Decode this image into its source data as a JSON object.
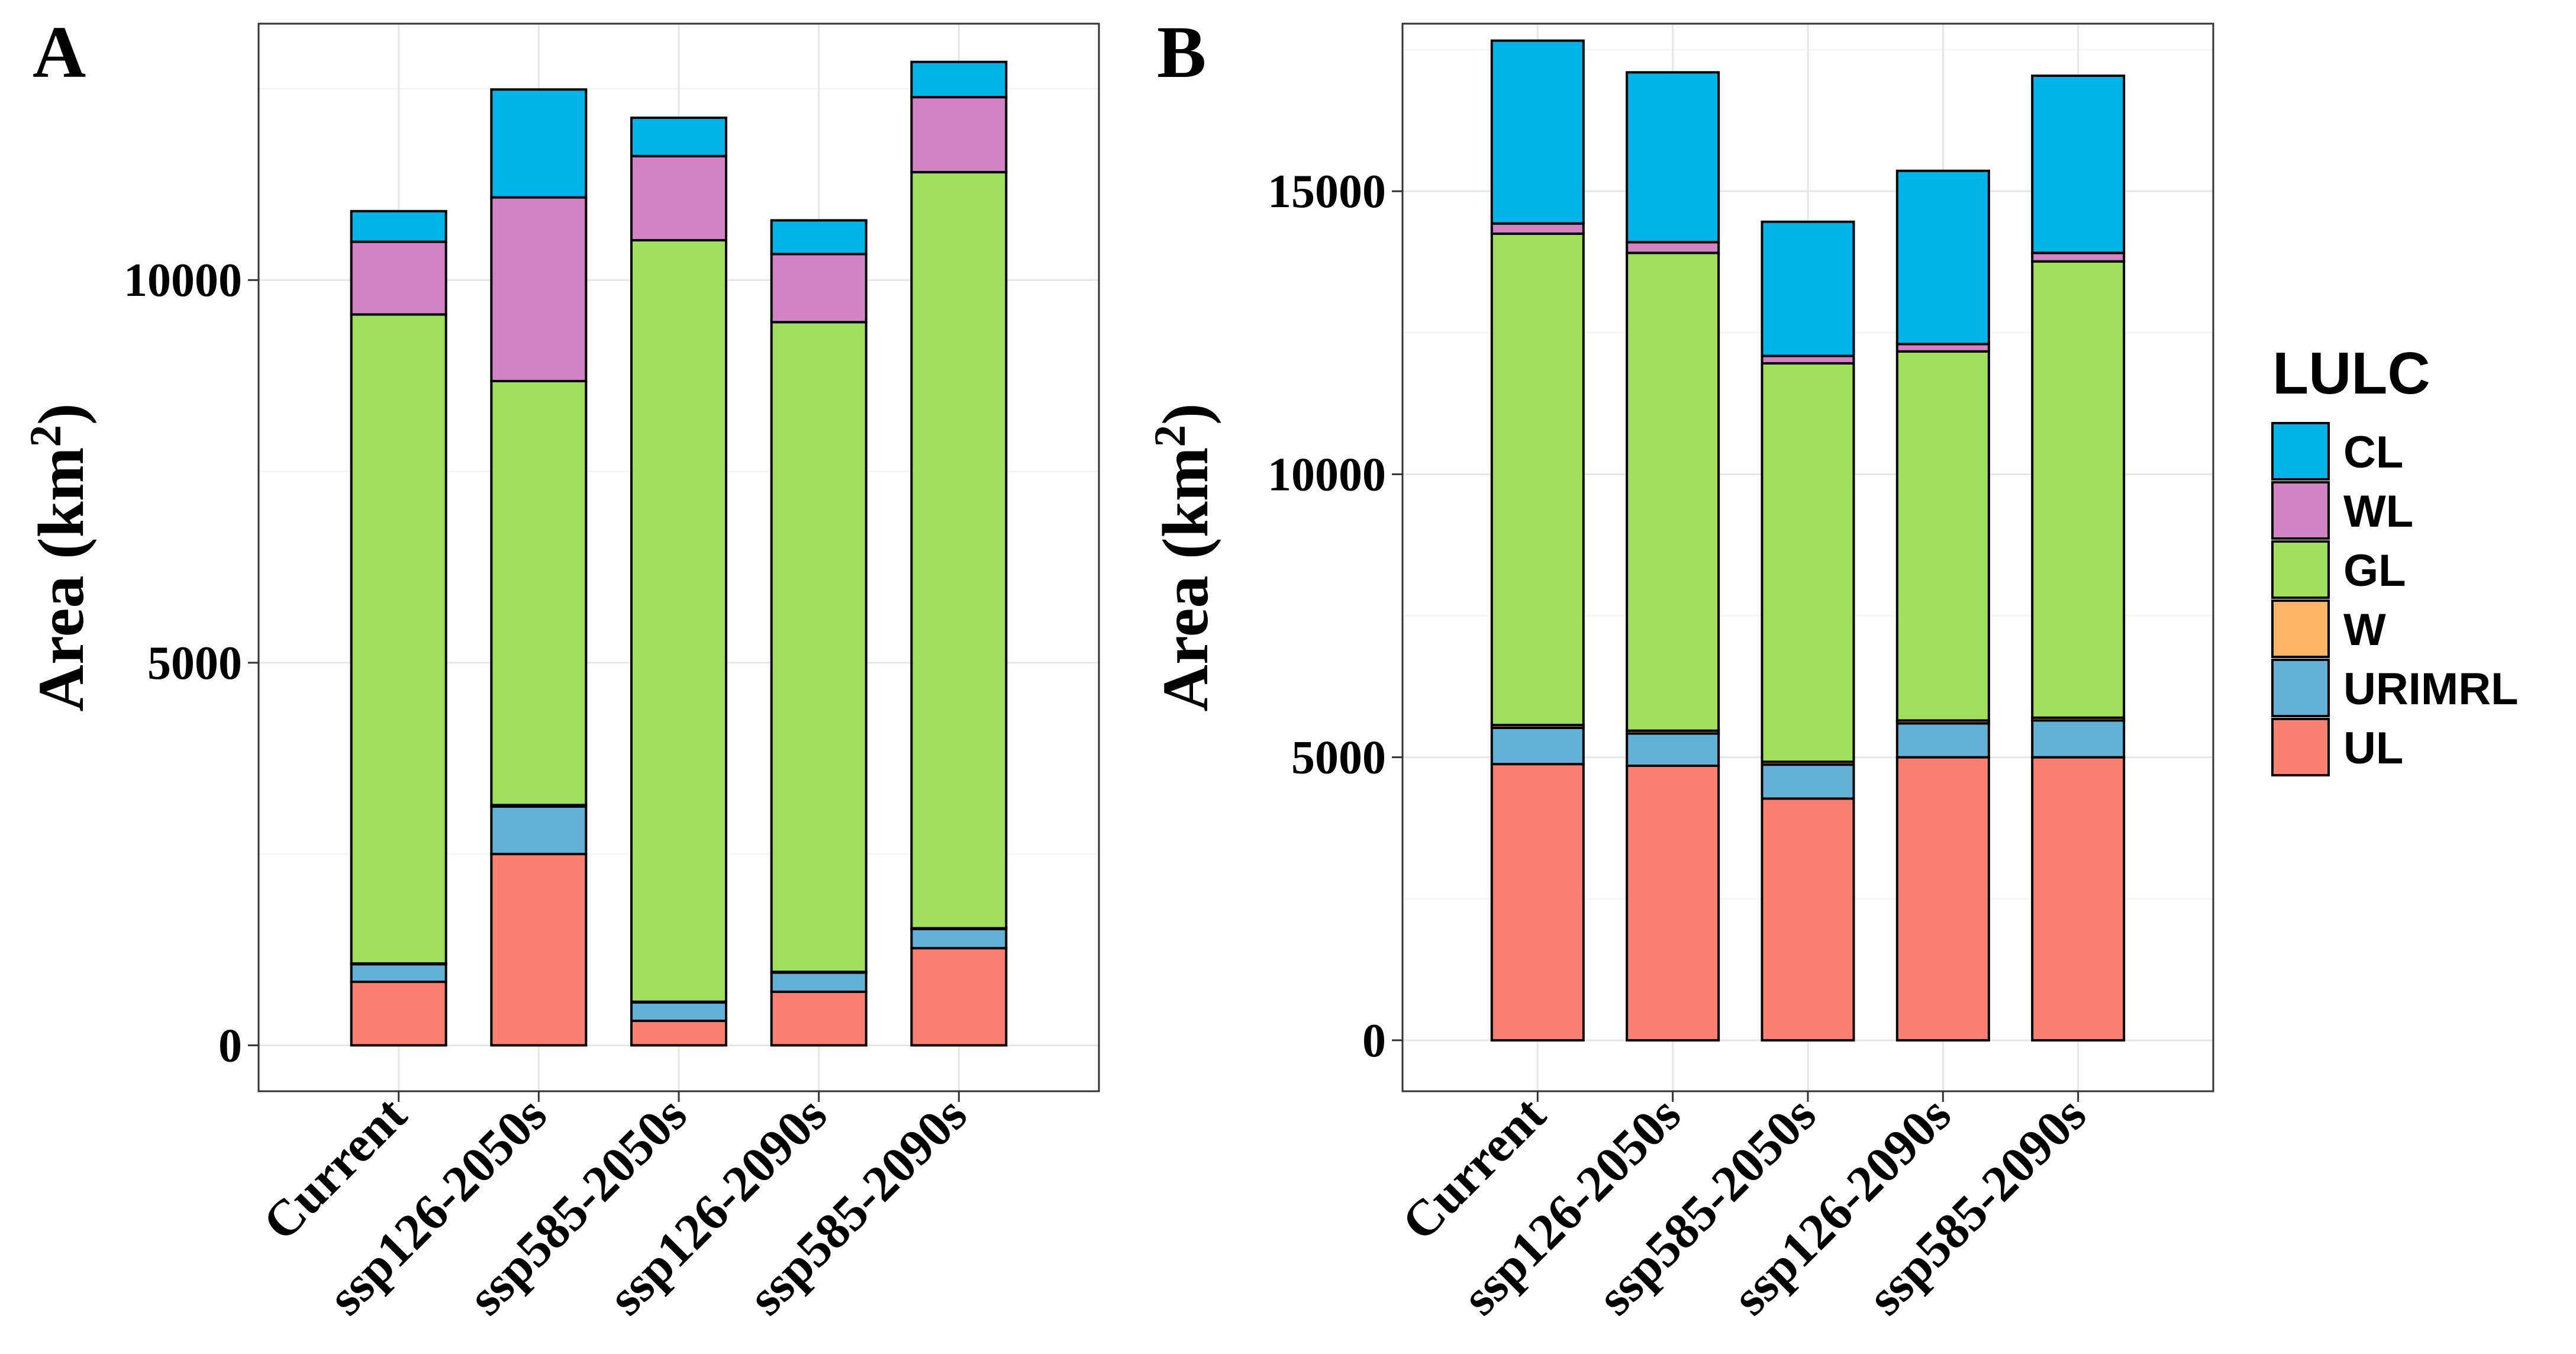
{
  "chart_data": [
    {
      "panel": "A",
      "type": "bar",
      "stacked": true,
      "ylabel": "Area (km²)",
      "ylabel_main": "Area (km",
      "ylabel_sup": "2",
      "ylabel_end": ")",
      "ylim": [
        -600,
        13350
      ],
      "yticks": [
        0,
        5000,
        10000
      ],
      "ytick_labels": [
        "0",
        "5000",
        "10000"
      ],
      "grid": true,
      "categories": [
        "Current",
        "ssp126-2050s",
        "ssp585-2050s",
        "ssp126-2090s",
        "ssp585-2090s"
      ],
      "series": [
        {
          "name": "UL",
          "values": [
            830,
            2500,
            320,
            700,
            1270
          ]
        },
        {
          "name": "URIMRL",
          "values": [
            230,
            620,
            240,
            250,
            250
          ]
        },
        {
          "name": "W",
          "values": [
            10,
            20,
            10,
            10,
            10
          ]
        },
        {
          "name": "GL",
          "values": [
            8480,
            5540,
            9950,
            8490,
            9880
          ]
        },
        {
          "name": "WL",
          "values": [
            950,
            2400,
            1100,
            890,
            980
          ]
        },
        {
          "name": "CL",
          "values": [
            400,
            1410,
            500,
            440,
            460
          ]
        }
      ]
    },
    {
      "panel": "B",
      "type": "bar",
      "stacked": true,
      "ylabel": "Area (km²)",
      "ylabel_main": "Area (km",
      "ylabel_sup": "2",
      "ylabel_end": ")",
      "ylim": [
        -900,
        17960
      ],
      "yticks": [
        0,
        5000,
        10000,
        15000
      ],
      "ytick_labels": [
        "0",
        "5000",
        "10000",
        "15000"
      ],
      "grid": true,
      "categories": [
        "Current",
        "ssp126-2050s",
        "ssp585-2050s",
        "ssp126-2090s",
        "ssp585-2090s"
      ],
      "series": [
        {
          "name": "UL",
          "values": [
            4880,
            4850,
            4270,
            5000,
            5000
          ]
        },
        {
          "name": "URIMRL",
          "values": [
            640,
            570,
            600,
            600,
            650
          ]
        },
        {
          "name": "W",
          "values": [
            50,
            50,
            50,
            50,
            50
          ]
        },
        {
          "name": "GL",
          "values": [
            8680,
            8440,
            7040,
            6520,
            8060
          ]
        },
        {
          "name": "WL",
          "values": [
            180,
            190,
            130,
            130,
            150
          ]
        },
        {
          "name": "CL",
          "values": [
            3230,
            3000,
            2370,
            3060,
            3130
          ]
        }
      ]
    }
  ],
  "legend": {
    "title": "LULC",
    "items": [
      {
        "name": "CL",
        "color": "#00B4E8"
      },
      {
        "name": "WL",
        "color": "#D183C5"
      },
      {
        "name": "GL",
        "color": "#A0DE5E"
      },
      {
        "name": "W",
        "color": "#FDB565"
      },
      {
        "name": "URIMRL",
        "color": "#63B1D4"
      },
      {
        "name": "UL",
        "color": "#FA8072"
      }
    ]
  },
  "colors": {
    "UL": "#FA8072",
    "URIMRL": "#63B1D4",
    "W": "#FDB565",
    "GL": "#A0DE5E",
    "WL": "#D183C5",
    "CL": "#00B4E8"
  }
}
